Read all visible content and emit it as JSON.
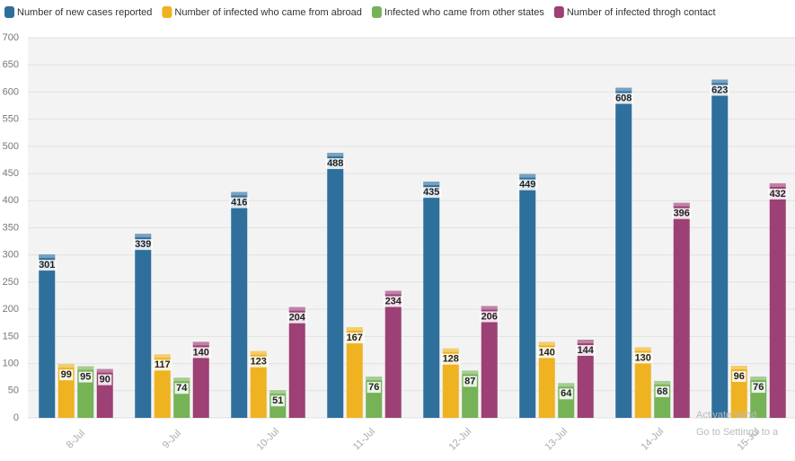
{
  "chart_data": {
    "type": "bar",
    "categories": [
      "8-Jul",
      "9-Jul",
      "10-Jul",
      "11-Jul",
      "12-Jul",
      "13-Jul",
      "14-Jul",
      "15-Jul"
    ],
    "series": [
      {
        "name": "Number of new cases reported",
        "color": "#2e6f9c",
        "values": [
          301,
          339,
          416,
          488,
          435,
          449,
          608,
          623
        ]
      },
      {
        "name": "Number of infected who came from abroad",
        "color": "#efb221",
        "values": [
          99,
          117,
          123,
          167,
          128,
          140,
          130,
          96
        ]
      },
      {
        "name": "Infected who came from other states",
        "color": "#76b256",
        "values": [
          95,
          74,
          51,
          76,
          87,
          64,
          68,
          76
        ]
      },
      {
        "name": "Number of infected throgh contact",
        "color": "#9c4075",
        "values": [
          90,
          140,
          204,
          234,
          206,
          144,
          396,
          432
        ]
      }
    ],
    "ylim": [
      0,
      700
    ],
    "yticks": [
      0,
      50,
      100,
      150,
      200,
      250,
      300,
      350,
      400,
      450,
      500,
      550,
      600,
      650,
      700
    ],
    "grid": true,
    "watermark": [
      "Activate Wind",
      "Go to Settings to a"
    ]
  }
}
